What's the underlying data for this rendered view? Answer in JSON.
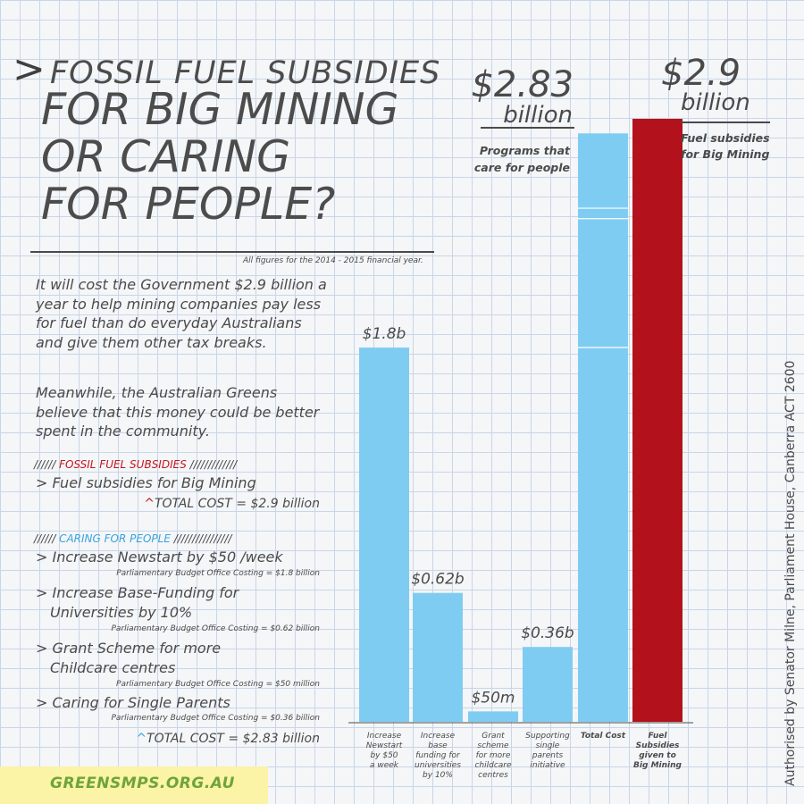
{
  "title": {
    "arrow": ">",
    "line1": "FOSSIL FUEL SUBSIDIES",
    "line2": "FOR BIG MINING",
    "line3": "OR CARING",
    "line4": "FOR PEOPLE?"
  },
  "footnote": "All figures for the 2014 - 2015 financial year.",
  "paragraph1": "It will cost the Government $2.9 billion a year to help mining companies pay less for fuel than do everyday Australians and give them other tax breaks.",
  "paragraph2": "Meanwhile, the Australian Greens believe that this money could be better spent in the community.",
  "fossil": {
    "slashes_left": "//////",
    "heading": "FOSSIL FUEL SUBSIDIES",
    "slashes_right": "/////////////",
    "item": "> Fuel subsidies for Big Mining",
    "total_caret": "^",
    "total": "TOTAL COST = $2.9 billion"
  },
  "caring": {
    "slashes_left": "//////",
    "heading": "CARING FOR PEOPLE",
    "slashes_right": "////////////////",
    "items": [
      {
        "line1": "> Increase Newstart by $50 /week",
        "line2": "",
        "costing": "Parliamentary Budget Office Costing = $1.8 billion"
      },
      {
        "line1": "> Increase Base-Funding for",
        "line2": "Universities by 10%",
        "costing": "Parliamentary Budget Office Costing = $0.62 billion"
      },
      {
        "line1": "> Grant Scheme for more",
        "line2": "Childcare centres",
        "costing": "Parliamentary Budget Office Costing = $50 million"
      },
      {
        "line1": "> Caring for Single Parents",
        "line2": "",
        "costing": "Parliamentary Budget Office Costing = $0.36 billion"
      }
    ],
    "total_caret": "^",
    "total": "TOTAL COST = $2.83 billion"
  },
  "big_labels": {
    "care_value": "$2.83",
    "care_unit": "billion",
    "care_caption1": "Programs that",
    "care_caption2": "care for people",
    "fuel_value": "$2.9",
    "fuel_unit": "billion",
    "fuel_caption1": "Fuel subsidies",
    "fuel_caption2": "for Big Mining"
  },
  "website": "GREENSMPS.ORG.AU",
  "authorised": "Authorised by Senator Milne, Parliament House, Canberra ACT 2600",
  "colors": {
    "blue": "#7fccf2",
    "red": "#b3121c",
    "text": "#4a4a4a",
    "accent_red": "#c4141f",
    "accent_blue": "#3aa3de",
    "website_green": "#6fa43a",
    "website_bg": "#fbf3a6"
  },
  "chart_data": {
    "type": "bar",
    "unit": "billion",
    "categories": [
      [
        "Increase",
        "Newstart",
        "by $50",
        "a week"
      ],
      [
        "Increase",
        "base",
        "funding for",
        "universities",
        "by 10%"
      ],
      [
        "Grant",
        "scheme",
        "for more",
        "childcare",
        "centres"
      ],
      [
        "Supporting",
        "single",
        "parents",
        "initiative"
      ],
      [
        "Total Cost"
      ],
      [
        "Fuel",
        "Subsidies",
        "given to",
        "Big Mining"
      ]
    ],
    "values": [
      1.8,
      0.62,
      0.05,
      0.36,
      2.83,
      2.9
    ],
    "data_labels": [
      "$1.8b",
      "$0.62b",
      "$50m",
      "$0.36b",
      "",
      ""
    ],
    "bar_colors": [
      "#7fccf2",
      "#7fccf2",
      "#7fccf2",
      "#7fccf2",
      "#7fccf2",
      "#b3121c"
    ],
    "bold_categories": [
      false,
      false,
      false,
      false,
      true,
      true
    ],
    "stacked_segments_total": [
      1.8,
      0.62,
      0.05,
      0.36
    ],
    "ylim": [
      0,
      2.9
    ],
    "grid": true,
    "legend": "none"
  }
}
